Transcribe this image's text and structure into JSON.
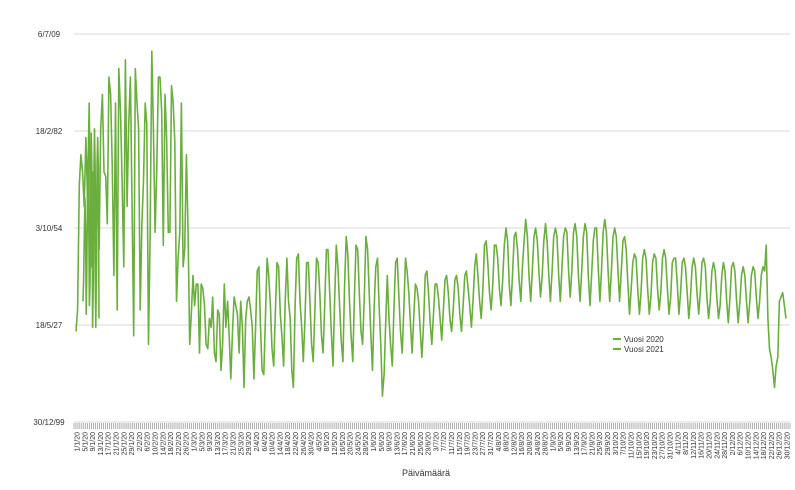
{
  "chart_data": {
    "type": "line",
    "title": "",
    "xlabel": "Päivämäärä",
    "ylabel": "",
    "y_tick_labels": [
      "6/7/09",
      "18/2/82",
      "3/10/54",
      "18/5/27",
      "30/12/99"
    ],
    "legend": {
      "placement": "right-lower",
      "entries": [
        "Vuosi 2020",
        "Vuosi 2021"
      ]
    },
    "colors": {
      "series": "#6aaf3d",
      "grid": "#d9d9d9",
      "text": "#333333"
    },
    "grid": true,
    "x_tick_labels": [
      "1/1/20",
      "5/1/20",
      "9/1/20",
      "13/1/20",
      "17/1/20",
      "21/1/20",
      "25/1/20",
      "29/1/20",
      "2/2/20",
      "6/2/20",
      "10/2/20",
      "14/2/20",
      "18/2/20",
      "22/2/20",
      "26/2/20",
      "1/3/20",
      "5/3/20",
      "9/3/20",
      "13/3/20",
      "17/3/20",
      "21/3/20",
      "25/3/20",
      "29/3/20",
      "2/4/20",
      "6/4/20",
      "10/4/20",
      "14/4/20",
      "18/4/20",
      "22/4/20",
      "26/4/20",
      "30/4/20",
      "4/5/20",
      "8/5/20",
      "12/5/20",
      "16/5/20",
      "20/5/20",
      "24/5/20",
      "28/5/20",
      "1/6/20",
      "5/6/20",
      "9/6/20",
      "13/6/20",
      "17/6/20",
      "21/6/20",
      "25/6/20",
      "29/6/20",
      "3/7/20",
      "7/7/20",
      "11/7/20",
      "15/7/20",
      "19/7/20",
      "23/7/20",
      "27/7/20",
      "31/7/20",
      "4/8/20",
      "8/8/20",
      "12/8/20",
      "16/8/20",
      "20/8/20",
      "24/8/20",
      "28/8/20",
      "1/9/20",
      "5/9/20",
      "9/9/20",
      "13/9/20",
      "17/9/20",
      "21/9/20",
      "25/9/20",
      "29/9/20",
      "3/10/20",
      "7/10/20",
      "11/10/20",
      "15/10/20",
      "19/10/20",
      "23/10/20",
      "27/10/20",
      "31/10/20",
      "4/11/20",
      "8/11/20",
      "12/11/20",
      "16/11/20",
      "20/11/20",
      "24/11/20",
      "28/11/20",
      "2/12/20",
      "6/12/20",
      "10/12/20",
      "14/12/20",
      "18/12/20",
      "22/12/20",
      "26/12/20",
      "30/12/20"
    ],
    "ylim": [
      0,
      45000
    ],
    "series": [
      {
        "name": "",
        "values": [
          10500,
          13000,
          27500,
          31000,
          29000,
          25000,
          33000,
          26000,
          37000,
          18000,
          29000,
          28500,
          11000,
          30000,
          20000,
          34000,
          38000,
          29000,
          28500,
          23000,
          40000,
          38000,
          30000,
          17000,
          37000,
          13000,
          41000,
          36000,
          28000,
          18000,
          42000,
          25000,
          34500,
          40000,
          25500,
          10000,
          41000,
          37000,
          34000,
          13000,
          23000,
          28000,
          37000,
          34500,
          9000,
          21500,
          43000,
          34000,
          22000,
          29000,
          40000,
          40000,
          36000,
          20500,
          38000,
          33000,
          22000,
          22000,
          39000,
          37000,
          32500,
          14000,
          19000,
          22000,
          37000,
          18000,
          20000,
          31000,
          22500,
          9000,
          12500,
          17000,
          13500,
          16000,
          16000,
          8000,
          16000,
          15500,
          13500,
          9000,
          8500,
          12000,
          11000,
          14500,
          8000,
          7000,
          13000,
          12500,
          6000,
          9000,
          16000,
          11000,
          14000,
          10000,
          5000,
          10500,
          14500,
          13500,
          12500,
          8000,
          14000,
          11000,
          4000,
          12000,
          14000,
          14500,
          13000,
          11000,
          5000,
          11000,
          17500,
          18000,
          11000,
          6000,
          5500,
          12000,
          19000,
          17000,
          13500,
          8500,
          6500,
          12500,
          18500,
          18000,
          12500,
          10000,
          6500,
          14000,
          19000,
          14000,
          12000,
          6000,
          4000,
          13500,
          19000,
          19500,
          14000,
          11000,
          7000,
          12000,
          18500,
          18500,
          14000,
          9000,
          7000,
          13000,
          19000,
          18500,
          15000,
          10000,
          8000,
          13500,
          20000,
          20000,
          15000,
          10500,
          6500,
          14000,
          20500,
          18000,
          13500,
          9500,
          7000,
          15500,
          21500,
          19500,
          14000,
          10000,
          7000,
          14500,
          20500,
          20000,
          15000,
          10500,
          9000,
          14500,
          21500,
          20000,
          15000,
          10000,
          6000,
          13500,
          18000,
          19000,
          13500,
          9000,
          3000,
          5500,
          11500,
          17000,
          12000,
          9000,
          6500,
          13000,
          18500,
          19000,
          14500,
          10500,
          8000,
          13000,
          19000,
          17500,
          15000,
          11500,
          8000,
          12000,
          16000,
          15500,
          14000,
          10500,
          7500,
          11500,
          17000,
          17500,
          15000,
          11500,
          9000,
          12500,
          16000,
          16000,
          14500,
          12000,
          9500,
          13000,
          16500,
          17000,
          15000,
          12000,
          10500,
          13000,
          16500,
          17000,
          15500,
          12500,
          10500,
          13500,
          17000,
          17500,
          15500,
          13500,
          11000,
          14000,
          18000,
          19500,
          17000,
          14000,
          12000,
          15500,
          20500,
          21000,
          18500,
          15000,
          13000,
          16000,
          20500,
          20500,
          19000,
          15500,
          13500,
          16500,
          20500,
          22500,
          21000,
          16000,
          13500,
          17000,
          21500,
          22000,
          20000,
          16500,
          14000,
          18000,
          21000,
          23500,
          21500,
          17000,
          14000,
          17500,
          21500,
          22500,
          21000,
          17500,
          14500,
          17000,
          21000,
          23000,
          21000,
          17000,
          14000,
          17500,
          21500,
          22500,
          21500,
          17000,
          14000,
          18000,
          21500,
          22500,
          22000,
          17500,
          14500,
          17500,
          22000,
          23000,
          21500,
          17000,
          14000,
          17500,
          21500,
          23000,
          22000,
          17000,
          13500,
          17000,
          21000,
          22500,
          22500,
          18000,
          14000,
          17500,
          22000,
          23500,
          22000,
          17500,
          14000,
          17500,
          21500,
          22500,
          21500,
          17500,
          14000,
          17500,
          21000,
          21500,
          20000,
          16000,
          12500,
          15500,
          18500,
          19500,
          19000,
          15500,
          12500,
          15000,
          19000,
          20000,
          19000,
          15500,
          12500,
          14500,
          18500,
          19500,
          19000,
          15500,
          13000,
          15000,
          19000,
          20000,
          19000,
          15500,
          12500,
          14500,
          18500,
          19000,
          19000,
          16000,
          12500,
          15000,
          18500,
          19000,
          18000,
          15000,
          12000,
          14500,
          18000,
          19000,
          18000,
          15000,
          12500,
          15000,
          18500,
          19000,
          18000,
          14500,
          12000,
          14000,
          17500,
          18500,
          17500,
          14500,
          12000,
          13500,
          17000,
          18500,
          17500,
          14000,
          11500,
          14500,
          18000,
          18500,
          17500,
          14000,
          11500,
          14000,
          17000,
          18000,
          17000,
          14000,
          11500,
          14000,
          17000,
          18000,
          17500,
          14500,
          12000,
          14000,
          17000,
          18000,
          17500,
          20500,
          12000,
          8500,
          7500,
          6000,
          4000,
          6500,
          7500,
          14000,
          14500,
          15000,
          13500,
          12000
        ]
      },
      {
        "name": "",
        "values": [
          14000,
          16500,
          21500,
          26000,
          22000,
          12500,
          17500,
          26500,
          30000,
          23000,
          13500,
          16000,
          27000,
          33500,
          28000,
          11000,
          15500,
          28500,
          34000,
          29000,
          15000,
          16500,
          30000,
          33000,
          29000,
          12000
        ]
      }
    ]
  }
}
